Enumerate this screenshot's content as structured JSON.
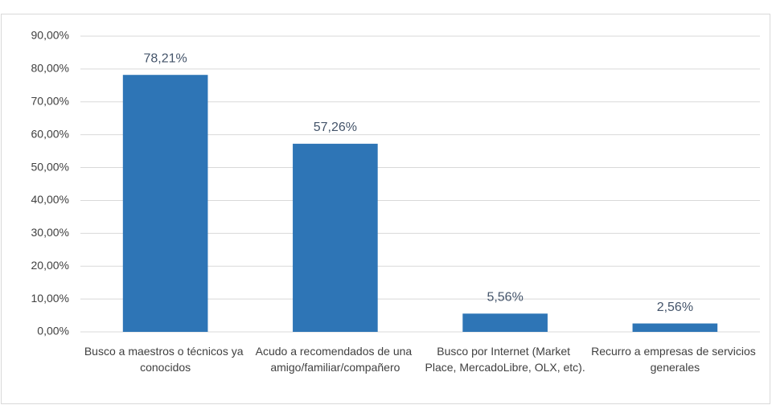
{
  "chart_data": {
    "type": "bar",
    "categories": [
      "Busco a maestros o técnicos ya conocidos",
      "Acudo a recomendados de una amigo/familiar/compañero",
      "Busco por Internet (Market Place, MercadoLibre, OLX, etc).",
      "Recurro a empresas de servicios generales"
    ],
    "values": [
      78.21,
      57.26,
      5.56,
      2.56
    ],
    "value_labels": [
      "78,21%",
      "57,26%",
      "5,56%",
      "2,56%"
    ],
    "color": "#2e75b6",
    "ylim": [
      0,
      90
    ],
    "yticks": [
      {
        "value": 0,
        "label": "0,00%"
      },
      {
        "value": 10,
        "label": "10,00%"
      },
      {
        "value": 20,
        "label": "20,00%"
      },
      {
        "value": 30,
        "label": "30,00%"
      },
      {
        "value": 40,
        "label": "40,00%"
      },
      {
        "value": 50,
        "label": "50,00%"
      },
      {
        "value": 60,
        "label": "60,00%"
      },
      {
        "value": 70,
        "label": "70,00%"
      },
      {
        "value": 80,
        "label": "80,00%"
      },
      {
        "value": 90,
        "label": "90,00%"
      }
    ],
    "grid": true
  }
}
